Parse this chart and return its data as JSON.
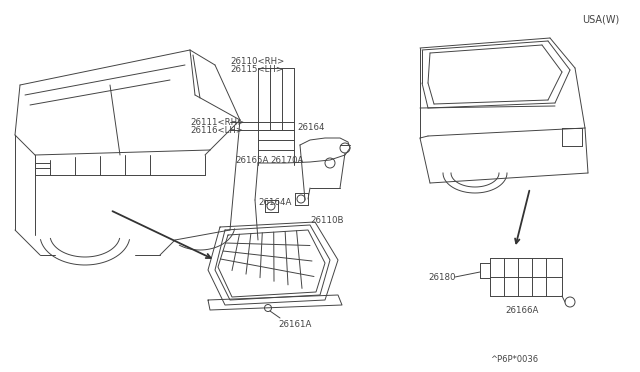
{
  "background_color": "#ffffff",
  "line_color": "#444444",
  "text_color": "#444444",
  "fig_width": 6.4,
  "fig_height": 3.72,
  "dpi": 100,
  "usa_label": "USA(W)",
  "part_code": "^P6P*0036",
  "labels": {
    "26110RH": "26110<RH>",
    "26115LH": "26115<LH>",
    "26111RH": "26111<RH>",
    "26116LH": "26116<LH>",
    "26164": "26164",
    "26165A": "26165A",
    "26170A": "26170A",
    "26164A": "26164A",
    "26110B": "26110B",
    "26161A": "26161A",
    "26180": "26180",
    "26166A": "26166A"
  }
}
